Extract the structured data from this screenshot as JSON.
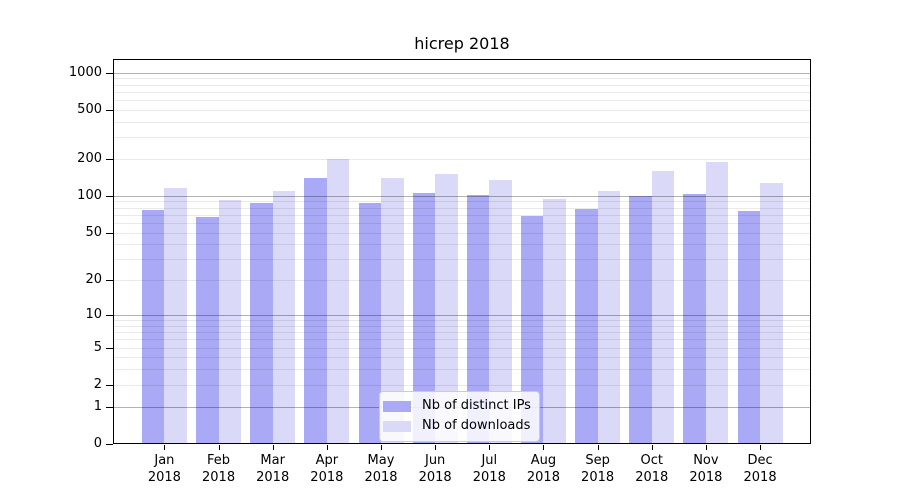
{
  "title": "hicrep 2018",
  "chart_data": {
    "type": "bar",
    "title": "hicrep 2018",
    "categories": [
      "Jan 2018",
      "Feb 2018",
      "Mar 2018",
      "Apr 2018",
      "May 2018",
      "Jun 2018",
      "Jul 2018",
      "Aug 2018",
      "Sep 2018",
      "Oct 2018",
      "Nov 2018",
      "Dec 2018"
    ],
    "series": [
      {
        "name": "Nb of distinct IPs",
        "color": "#a9a9f5",
        "values": [
          76,
          67,
          88,
          140,
          87,
          105,
          101,
          68,
          78,
          99,
          104,
          75
        ]
      },
      {
        "name": "Nb of downloads",
        "color": "#dadaf8",
        "values": [
          115,
          92,
          109,
          200,
          141,
          150,
          134,
          94,
          110,
          159,
          188,
          128
        ]
      }
    ],
    "xlabel": "",
    "ylabel": "",
    "yscale": "log1p",
    "yticks": [
      0,
      1,
      2,
      5,
      10,
      20,
      50,
      100,
      200,
      500,
      1000
    ],
    "ylim": [
      0,
      1300
    ],
    "grid": "horizontal, major decades darker + minor 2-9 lighter, drawn over bars",
    "legend_position": "inside bottom-center"
  },
  "colors": {
    "background": "#ffffff",
    "axis": "#000000",
    "major_grid": "#b0b0b0",
    "minor_grid": "#e9e9e9",
    "legend_border": "#cccccc"
  }
}
